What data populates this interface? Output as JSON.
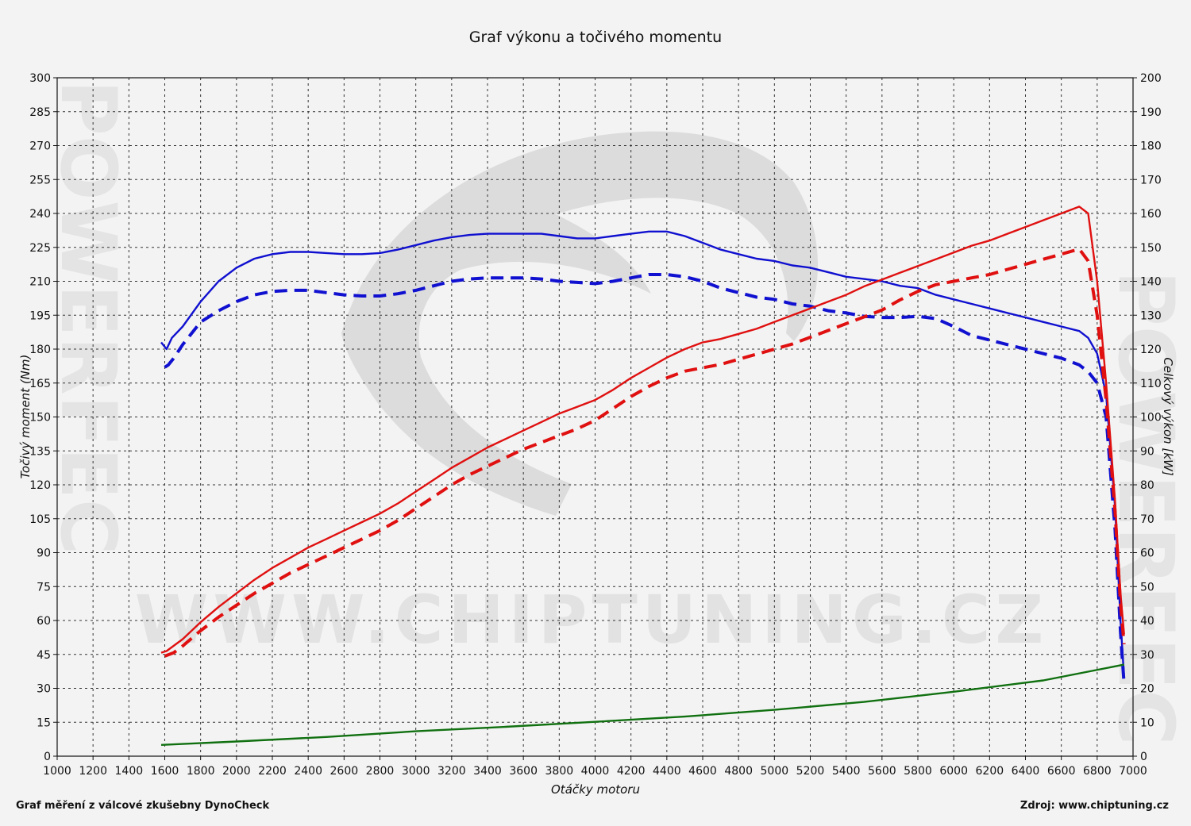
{
  "chart_data": {
    "type": "line",
    "title": "Graf výkonu a točivého momentu",
    "xlabel": "Otáčky motoru",
    "ylabel_left": "Točivý moment (Nm)",
    "ylabel_right": "Celkový výkon [kW]",
    "x_range": [
      1000,
      7000
    ],
    "y_left_range": [
      0,
      300
    ],
    "y_right_range": [
      0,
      200
    ],
    "grid": true,
    "x_ticks": [
      "1000",
      "1200",
      "1400",
      "1600",
      "1800",
      "2000",
      "2200",
      "2400",
      "2600",
      "2800",
      "3000",
      "3200",
      "3400",
      "3600",
      "3800",
      "4000",
      "4200",
      "4400",
      "4600",
      "4800",
      "5000",
      "5200",
      "5400",
      "5600",
      "5800",
      "6000",
      "6200",
      "6400",
      "6600",
      "6800",
      "7000"
    ],
    "y_left_ticks": [
      "0",
      "15",
      "30",
      "45",
      "60",
      "75",
      "90",
      "105",
      "120",
      "135",
      "150",
      "165",
      "180",
      "195",
      "210",
      "225",
      "240",
      "255",
      "270",
      "285",
      "300"
    ],
    "y_right_ticks": [
      "0",
      "10",
      "20",
      "30",
      "40",
      "50",
      "60",
      "70",
      "80",
      "90",
      "100",
      "110",
      "120",
      "130",
      "140",
      "150",
      "160",
      "170",
      "180",
      "190",
      "200"
    ],
    "series": [
      {
        "color": "#1010d0",
        "style": "solid",
        "axis": "left",
        "x": [
          1580,
          1610,
          1640,
          1700,
          1800,
          1900,
          2000,
          2100,
          2200,
          2300,
          2400,
          2500,
          2600,
          2700,
          2800,
          2900,
          3000,
          3100,
          3200,
          3300,
          3400,
          3500,
          3600,
          3700,
          3800,
          3900,
          4000,
          4100,
          4200,
          4300,
          4400,
          4500,
          4600,
          4700,
          4800,
          4900,
          5000,
          5100,
          5200,
          5300,
          5400,
          5500,
          5600,
          5700,
          5800,
          5900,
          6000,
          6100,
          6200,
          6300,
          6400,
          6500,
          6600,
          6700,
          6750,
          6800,
          6850,
          6900,
          6930,
          6950
        ],
        "y": [
          183,
          180,
          185,
          190,
          201,
          210,
          216,
          220,
          222,
          223,
          223,
          222.5,
          222,
          222,
          222.5,
          224,
          226,
          228,
          229.5,
          230.5,
          231,
          231,
          231,
          231,
          230,
          229,
          229,
          230,
          231,
          232,
          232,
          230,
          227,
          224,
          222,
          220,
          219,
          217,
          216,
          214,
          212,
          211,
          210,
          208,
          207,
          204,
          202,
          200,
          198,
          196,
          194,
          192,
          190,
          188,
          185,
          178,
          160,
          110,
          60,
          35
        ]
      },
      {
        "color": "#1010d0",
        "style": "dashed",
        "axis": "left",
        "x": [
          1600,
          1620,
          1650,
          1700,
          1800,
          1900,
          2000,
          2100,
          2200,
          2300,
          2400,
          2500,
          2600,
          2700,
          2800,
          2900,
          3000,
          3100,
          3200,
          3300,
          3400,
          3500,
          3600,
          3700,
          3800,
          3900,
          4000,
          4100,
          4200,
          4300,
          4400,
          4500,
          4600,
          4700,
          4800,
          4900,
          5000,
          5100,
          5200,
          5300,
          5400,
          5500,
          5600,
          5700,
          5800,
          5900,
          6000,
          6100,
          6200,
          6300,
          6400,
          6500,
          6600,
          6700,
          6750,
          6800,
          6850,
          6900,
          6930,
          6950
        ],
        "y": [
          172,
          173,
          176,
          182,
          192,
          197,
          201,
          204,
          205.5,
          206,
          206,
          205,
          204,
          203.5,
          203.5,
          204.5,
          206,
          208,
          210,
          211,
          211.5,
          211.5,
          211.5,
          211,
          210,
          209.5,
          209,
          210,
          211.5,
          213,
          213,
          212,
          210,
          207,
          205,
          203,
          202,
          200,
          199,
          197,
          196,
          194.5,
          194,
          194,
          194.5,
          193.5,
          190,
          186,
          184,
          182,
          180,
          178,
          176,
          173,
          170,
          165,
          150,
          100,
          55,
          32
        ]
      },
      {
        "color": "#e01010",
        "style": "solid",
        "axis": "right",
        "x": [
          1580,
          1610,
          1700,
          1800,
          1900,
          2000,
          2100,
          2200,
          2300,
          2400,
          2500,
          2600,
          2700,
          2800,
          2900,
          3000,
          3100,
          3200,
          3300,
          3400,
          3500,
          3600,
          3700,
          3800,
          3900,
          4000,
          4100,
          4200,
          4300,
          4400,
          4500,
          4600,
          4700,
          4800,
          4900,
          5000,
          5100,
          5200,
          5300,
          5400,
          5500,
          5600,
          5700,
          5800,
          5900,
          6000,
          6100,
          6200,
          6300,
          6400,
          6500,
          6600,
          6700,
          6750,
          6800,
          6850,
          6900,
          6930,
          6950
        ],
        "y": [
          30.5,
          31,
          34.5,
          39.5,
          44,
          48,
          52,
          55.5,
          58.5,
          61.5,
          64,
          66.5,
          69,
          71.5,
          74.5,
          78,
          81.5,
          85,
          88,
          91,
          93.5,
          96,
          98.5,
          101,
          103,
          105,
          108,
          111.5,
          114.5,
          117.5,
          120,
          122,
          123,
          124.5,
          126,
          128,
          130,
          132,
          134,
          136,
          138.5,
          140.5,
          142.5,
          144.5,
          146.5,
          148.5,
          150.5,
          152,
          154,
          156,
          158,
          160,
          162,
          160,
          140,
          110,
          75,
          48,
          36
        ]
      },
      {
        "color": "#e01010",
        "style": "dashed",
        "axis": "right",
        "x": [
          1600,
          1650,
          1700,
          1800,
          1900,
          2000,
          2100,
          2200,
          2300,
          2400,
          2500,
          2600,
          2700,
          2800,
          2900,
          3000,
          3100,
          3200,
          3300,
          3400,
          3500,
          3600,
          3700,
          3800,
          3900,
          4000,
          4100,
          4200,
          4300,
          4400,
          4500,
          4600,
          4700,
          4800,
          4900,
          5000,
          5100,
          5200,
          5300,
          5400,
          5500,
          5600,
          5700,
          5800,
          5900,
          6000,
          6100,
          6200,
          6300,
          6400,
          6500,
          6600,
          6700,
          6750,
          6800,
          6850,
          6900,
          6930,
          6950
        ],
        "y": [
          29.5,
          30.5,
          32.5,
          37,
          41,
          44.5,
          48,
          51,
          54,
          56.5,
          59,
          61.5,
          64,
          66.5,
          69.5,
          73,
          76.5,
          80,
          83,
          85.5,
          88,
          90.5,
          92.5,
          94.5,
          96.5,
          99,
          102.5,
          106,
          109,
          111.5,
          113.5,
          114.5,
          115.5,
          117,
          118.5,
          120,
          121.5,
          123.5,
          125.5,
          127.5,
          129.5,
          131.5,
          134.5,
          137,
          139,
          140,
          141,
          142,
          143.5,
          145,
          146.5,
          148,
          149.5,
          146,
          130,
          105,
          72,
          45,
          33
        ]
      },
      {
        "color": "#107010",
        "style": "solid",
        "axis": "left",
        "x": [
          1580,
          2000,
          2500,
          3000,
          3500,
          4000,
          4500,
          5000,
          5500,
          6000,
          6500,
          6950
        ],
        "y": [
          5,
          6.5,
          8.5,
          11,
          13,
          15.2,
          17.5,
          20.5,
          24,
          28.5,
          33.5,
          40.5
        ]
      }
    ]
  },
  "footer": {
    "left": "Graf měření z válcové zkušebny DynoCheck",
    "right": "Zdroj: www.chiptuning.cz"
  },
  "watermark": {
    "text": "WWW.CHIPTUNING.CZ",
    "side": "POWERFEC"
  }
}
